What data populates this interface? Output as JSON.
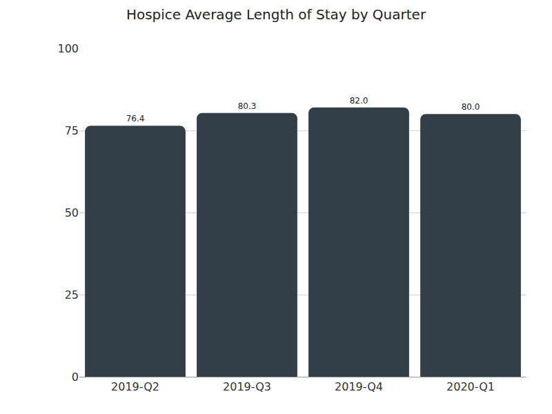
{
  "chart_data": {
    "type": "bar",
    "title": "Hospice Average Length of Stay by Quarter",
    "categories": [
      "2019-Q2",
      "2019-Q3",
      "2019-Q4",
      "2020-Q1"
    ],
    "values": [
      76.4,
      80.3,
      82.0,
      80.0
    ],
    "value_labels": [
      "76.4",
      "80.3",
      "82.0",
      "80.0"
    ],
    "color": "#333f48",
    "ylim": [
      0,
      100
    ],
    "yticks": [
      0,
      25,
      50,
      75,
      100
    ],
    "grid": true,
    "data_labels": true
  }
}
